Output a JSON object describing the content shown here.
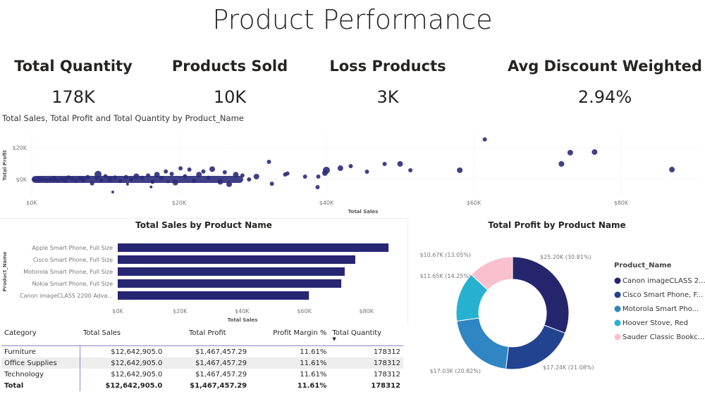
{
  "title": "Product Performance",
  "kpis": [
    {
      "label": "Total Quantity",
      "value": "178K"
    },
    {
      "label": "Products Sold",
      "value": "10K"
    },
    {
      "label": "Loss Products",
      "value": "3K"
    },
    {
      "label": "Avg Discount Weighted",
      "value": "2.94%"
    }
  ],
  "chart_data": [
    {
      "type": "scatter",
      "title": "Total Sales, Total Profit and Total Quantity by Product_Name",
      "xlabel": "Total Sales",
      "ylabel": "Total Profit",
      "xlim": [
        0,
        88000
      ],
      "ylim": [
        -10000,
        30000
      ],
      "xticks": [
        "$0K",
        "$20K",
        "$40K",
        "$60K",
        "$80K"
      ],
      "yticks": [
        "$0K",
        "$20K"
      ],
      "grid": true,
      "color": "#2b2b7a",
      "points": [
        [
          61500,
          25300,
          3
        ],
        [
          73100,
          16900,
          4
        ],
        [
          76400,
          17300,
          4
        ],
        [
          71900,
          9800,
          4
        ],
        [
          86900,
          6200,
          4
        ],
        [
          58100,
          5800,
          4
        ],
        [
          51400,
          5800,
          3
        ],
        [
          50000,
          9800,
          4
        ],
        [
          47900,
          9800,
          3
        ],
        [
          45500,
          4900,
          3
        ],
        [
          43300,
          8400,
          3
        ],
        [
          41900,
          7100,
          4
        ],
        [
          40000,
          5800,
          5
        ],
        [
          39800,
          4000,
          4
        ],
        [
          38900,
          1800,
          3
        ],
        [
          38800,
          -4900,
          3
        ],
        [
          37100,
          1800,
          3
        ],
        [
          34400,
          3100,
          3
        ],
        [
          34700,
          3700,
          3
        ],
        [
          32200,
          11100,
          3
        ],
        [
          32600,
          -2700,
          3
        ],
        [
          30500,
          1800,
          4
        ],
        [
          29500,
          0,
          3
        ],
        [
          28600,
          2500,
          3
        ],
        [
          27700,
          3000,
          4
        ],
        [
          26800,
          -3000,
          4
        ],
        [
          26200,
          4500,
          3
        ],
        [
          25600,
          -1500,
          4
        ],
        [
          24500,
          6500,
          4
        ],
        [
          24000,
          1000,
          3
        ],
        [
          23300,
          5000,
          3
        ],
        [
          22700,
          3000,
          4
        ],
        [
          22000,
          -1000,
          3
        ],
        [
          21400,
          6200,
          3
        ],
        [
          20800,
          2000,
          3
        ],
        [
          20200,
          7000,
          3
        ],
        [
          19500,
          -2000,
          4
        ],
        [
          19000,
          3500,
          3
        ],
        [
          18200,
          5000,
          3
        ],
        [
          17600,
          1000,
          3
        ],
        [
          17000,
          3000,
          4
        ],
        [
          16400,
          -1500,
          3
        ],
        [
          15800,
          2500,
          3
        ],
        [
          15000,
          1000,
          3
        ],
        [
          14200,
          2000,
          4
        ],
        [
          13500,
          0,
          3
        ],
        [
          12800,
          1500,
          3
        ],
        [
          12000,
          -1000,
          3
        ],
        [
          11300,
          1200,
          3
        ],
        [
          10600,
          0,
          4
        ],
        [
          10000,
          2000,
          3
        ],
        [
          9400,
          -500,
          3
        ],
        [
          8800,
          1000,
          3
        ],
        [
          8200,
          -2500,
          3
        ],
        [
          7600,
          1500,
          3
        ],
        [
          7000,
          0,
          4
        ],
        [
          6500,
          800,
          3
        ],
        [
          6000,
          -800,
          3
        ],
        [
          5500,
          500,
          3
        ],
        [
          5000,
          1200,
          3
        ],
        [
          4500,
          -300,
          4
        ],
        [
          4000,
          400,
          3
        ],
        [
          3500,
          -600,
          3
        ],
        [
          3000,
          300,
          4
        ],
        [
          2500,
          0,
          3
        ],
        [
          2000,
          -400,
          3
        ],
        [
          1500,
          200,
          3
        ],
        [
          1000,
          0,
          4
        ],
        [
          600,
          -200,
          3
        ],
        [
          300,
          100,
          3
        ],
        [
          11000,
          -8000,
          2
        ],
        [
          16200,
          -4800,
          2
        ],
        [
          9000,
          3200,
          5
        ],
        [
          13000,
          -3000,
          2
        ],
        [
          18500,
          -1500,
          2
        ]
      ]
    },
    {
      "type": "bar",
      "orientation": "horizontal",
      "title": "Total Sales by Product Name",
      "xlabel": "Total Sales",
      "ylabel": "Product_Name",
      "xlim": [
        0,
        88000
      ],
      "xticks": [
        "$0K",
        "$20K",
        "$40K",
        "$60K",
        "$80K"
      ],
      "color": "#262673",
      "categories": [
        "Apple Smart Phone, Full Size",
        "Cisco Smart Phone, Full Size",
        "Motorola Smart Phone, Full Size",
        "Nokia Smart Phone, Full Size",
        "Canon imageCLASS 2200 Adva..."
      ],
      "values": [
        87100,
        76400,
        73000,
        71900,
        61500
      ]
    },
    {
      "type": "pie",
      "title": "Total Profit by Product Name",
      "legend_title": "Product_Name",
      "legend_position": "right",
      "slices": [
        {
          "name": "Canon imageCLASS 2...",
          "value": 25200,
          "label": "$25.20K (30.81%)",
          "color": "#25256e"
        },
        {
          "name": "Cisco Smart Phone, F...",
          "value": 17240,
          "label": "$17.24K (21.08%)",
          "color": "#22438f"
        },
        {
          "name": "Motorola Smart Pho...",
          "value": 17030,
          "label": "$17.03K (20.82%)",
          "color": "#2f86c3"
        },
        {
          "name": "Hoover Stove, Red",
          "value": 11650,
          "label": "$11.65K (14.25%)",
          "color": "#26b1d1"
        },
        {
          "name": "Sauder Classic Bookc...",
          "value": 10670,
          "label": "$10.67K (13.05%)",
          "color": "#f9c0ce"
        }
      ]
    }
  ],
  "table": {
    "headers": [
      "Category",
      "Total Sales",
      "Total Profit",
      "Profit Margin %",
      "Total Quantity"
    ],
    "rows": [
      [
        "Furniture",
        "$12,642,905.0",
        "$1,467,457.29",
        "11.61%",
        "178312"
      ],
      [
        "Office Supplies",
        "$12,642,905.0",
        "$1,467,457.29",
        "11.61%",
        "178312"
      ],
      [
        "Technology",
        "$12,642,905.0",
        "$1,467,457.29",
        "11.61%",
        "178312"
      ]
    ],
    "total": [
      "Total",
      "$12,642,905.0",
      "$1,467,457.29",
      "11.61%",
      "178312"
    ]
  }
}
